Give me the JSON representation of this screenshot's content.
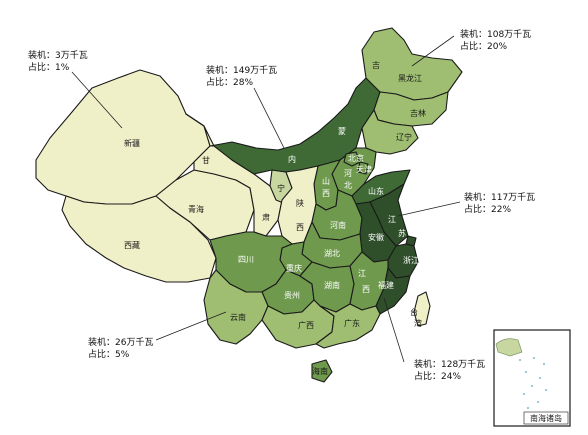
{
  "colors": {
    "tier1": "#f0f0c8",
    "tier2": "#c8d6a0",
    "tier3": "#9fbe72",
    "tier4": "#6f9a4e",
    "tier5": "#3f6a36",
    "tier6": "#2f4f2a",
    "border": "#1a1a1a",
    "sea": "#ffffff"
  },
  "provinces": {
    "xinjiang": "新疆",
    "xizang": "西藏",
    "qinghai": "青海",
    "gansu_1": "甘",
    "gansu_2": "肃",
    "ningxia": "宁",
    "neimenggu_1": "蒙",
    "neimenggu_2": "内",
    "heilongjiang": "黑龙江",
    "jilin_1": "吉",
    "jilin_2": "吉林",
    "liaoning": "辽宁",
    "beijing": "北京",
    "tianjin": "天津",
    "hebei_1": "河",
    "hebei_2": "北",
    "shanxi_1": "山",
    "shanxi_2": "西",
    "shaanxi_1": "陕",
    "shaanxi_2": "西",
    "shandong": "山东",
    "henan": "河南",
    "jiangsu_1": "江",
    "jiangsu_2": "苏",
    "anhui": "安徽",
    "shanghai": "沪",
    "zhejiang": "浙江",
    "hubei": "湖北",
    "sichuan": "四川",
    "chongqing": "重庆",
    "guizhou": "贵州",
    "hunan": "湖南",
    "jiangxi": "江西",
    "fujian": "福建",
    "yunnan": "云南",
    "guangxi": "广西",
    "guangdong": "广东",
    "hainan": "海南",
    "taiwan_1": "台",
    "taiwan_2": "湾",
    "inset": "南海诸岛"
  },
  "callouts": [
    {
      "line1": "装机：3万千瓦",
      "line2": "占比：1%"
    },
    {
      "line1": "装机：149万千瓦",
      "line2": "占比：28%"
    },
    {
      "line1": "装机：108万千瓦",
      "line2": "占比：20%"
    },
    {
      "line1": "装机：117万千瓦",
      "line2": "占比：22%"
    },
    {
      "line1": "装机：26万千瓦",
      "line2": "占比：5%"
    },
    {
      "line1": "装机：128万千瓦",
      "line2": "占比：24%"
    }
  ]
}
